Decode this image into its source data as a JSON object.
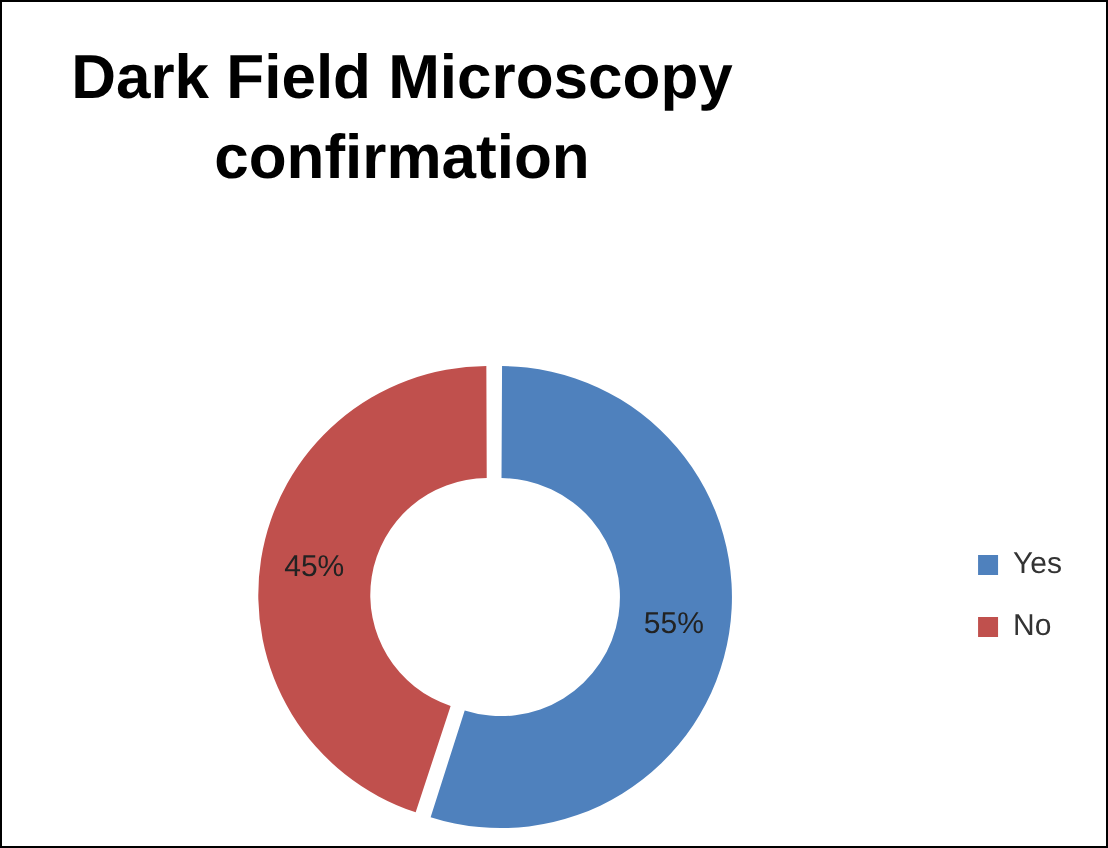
{
  "chart_data": {
    "type": "donut",
    "title": "Dark Field Microscopy confirmation",
    "categories": [
      "Yes",
      "No"
    ],
    "values": [
      55,
      45
    ],
    "value_labels": [
      "55%",
      "45%"
    ],
    "colors": [
      "#4f81bd",
      "#c0504d"
    ],
    "legend": "right"
  }
}
